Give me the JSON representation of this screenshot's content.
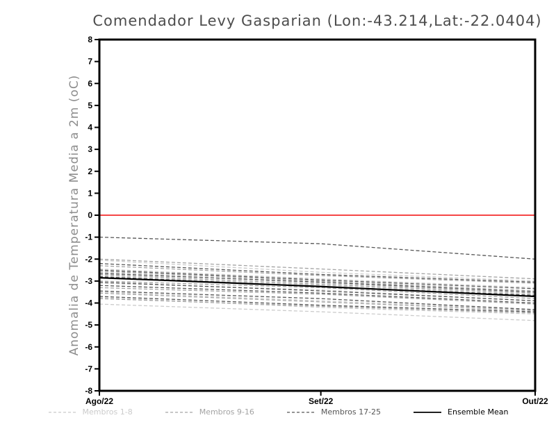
{
  "title": "Comendador Levy Gasparian (Lon:-43.214,Lat:-22.0404)",
  "chart_data": {
    "type": "line",
    "title": "Comendador Levy Gasparian (Lon:-43.214,Lat:-22.0404)",
    "xlabel": "",
    "ylabel": "Anomalia de Temperatura Media a 2m (oC)",
    "ylim": [
      -8,
      8
    ],
    "y_ticks": [
      8,
      7,
      6,
      5,
      4,
      3,
      2,
      1,
      0,
      -1,
      -2,
      -3,
      -4,
      -5,
      -6,
      -7,
      -8
    ],
    "x_range": [
      0,
      61
    ],
    "x": [
      0,
      31,
      61
    ],
    "x_ticks": [
      {
        "pos": 0,
        "label": "Ago/22"
      },
      {
        "pos": 31,
        "label": "Set/22"
      },
      {
        "pos": 61,
        "label": "Out/22"
      }
    ],
    "grid": false,
    "legend_position": "bottom",
    "zero_line": {
      "y": 0,
      "color": "#f54545"
    },
    "frame_color": "#000000",
    "groups": [
      {
        "name": "Membros 1-8",
        "color": "#cbcbcb",
        "style": "dashed",
        "width": 1.3,
        "series": [
          [
            -2.05,
            -2.6,
            -3.0
          ],
          [
            -2.45,
            -2.9,
            -3.3
          ],
          [
            -2.6,
            -3.1,
            -3.5
          ],
          [
            -2.75,
            -3.2,
            -3.6
          ],
          [
            -3.1,
            -3.4,
            -3.9
          ],
          [
            -3.5,
            -3.9,
            -4.3
          ],
          [
            -3.75,
            -4.2,
            -4.5
          ],
          [
            -4.05,
            -4.4,
            -4.8
          ]
        ]
      },
      {
        "name": "Membros 9-16",
        "color": "#a3a3a3",
        "style": "dashed",
        "width": 1.3,
        "series": [
          [
            -2.0,
            -2.45,
            -2.9
          ],
          [
            -2.3,
            -2.75,
            -3.1
          ],
          [
            -2.55,
            -3.0,
            -3.45
          ],
          [
            -2.7,
            -3.15,
            -3.55
          ],
          [
            -3.0,
            -3.3,
            -3.8
          ],
          [
            -3.3,
            -3.6,
            -4.05
          ],
          [
            -3.55,
            -3.95,
            -4.35
          ],
          [
            -3.8,
            -4.15,
            -4.45
          ]
        ]
      },
      {
        "name": "Membros 17-25",
        "color": "#565656",
        "style": "dashed",
        "width": 1.3,
        "series": [
          [
            -1.0,
            -1.3,
            -2.0
          ],
          [
            -2.2,
            -2.7,
            -3.05
          ],
          [
            -2.5,
            -2.95,
            -3.35
          ],
          [
            -2.65,
            -3.05,
            -3.5
          ],
          [
            -2.8,
            -3.25,
            -3.65
          ],
          [
            -3.05,
            -3.45,
            -3.9
          ],
          [
            -3.2,
            -3.55,
            -4.0
          ],
          [
            -3.45,
            -3.8,
            -4.3
          ],
          [
            -3.7,
            -4.1,
            -4.4
          ]
        ]
      },
      {
        "name": "Ensemble Mean",
        "color": "#000000",
        "style": "solid",
        "width": 2.2,
        "series": [
          [
            -2.85,
            -3.25,
            -3.7
          ]
        ]
      }
    ]
  }
}
